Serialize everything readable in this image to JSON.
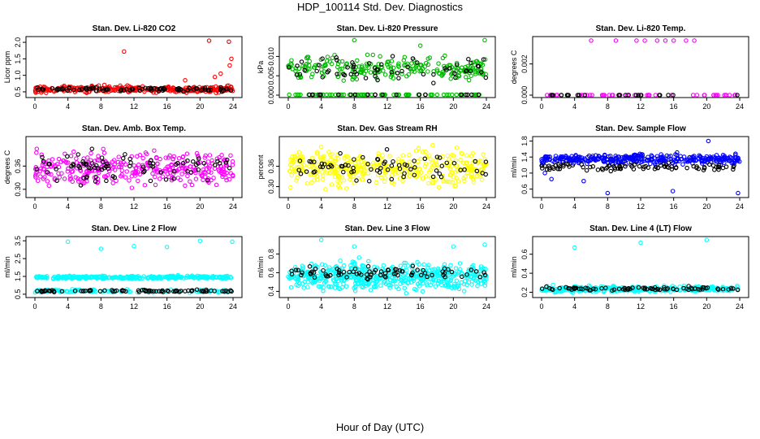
{
  "title": "HDP_100114  Std. Dev. Diagnostics",
  "xlabel": "Hour of Day (UTC)",
  "x_ticks": [
    "0",
    "4",
    "8",
    "12",
    "16",
    "20",
    "24"
  ],
  "chart_data": [
    {
      "type": "scatter",
      "title": "Stan. Dev. Li-820 CO2",
      "ylabel": "Licor ppm",
      "xlim": [
        0,
        24
      ],
      "ylim": [
        0.4,
        2.1
      ],
      "y_ticks": [
        "0.5",
        "1.0",
        "1.5",
        "2.0"
      ],
      "y_tick_values": [
        0.5,
        1.0,
        1.5,
        2.0
      ],
      "grid": false,
      "series": [
        {
          "color": "#ff0000",
          "base": 0.58,
          "spread": 0.1,
          "n": 300,
          "outliers": [
            [
              10.8,
              1.72
            ],
            [
              21.1,
              2.05
            ],
            [
              23.5,
              2.02
            ],
            [
              23.8,
              1.5
            ],
            [
              23.6,
              1.3
            ],
            [
              22.5,
              1.05
            ],
            [
              21.8,
              0.95
            ],
            [
              18.2,
              0.85
            ]
          ]
        },
        {
          "color": "#000000",
          "base": 0.58,
          "spread": 0.06,
          "n": 90,
          "outliers": []
        }
      ]
    },
    {
      "type": "scatter",
      "title": "Stan. Dev. Li-820 Pressure",
      "ylabel": "kPa",
      "xlim": [
        0,
        24
      ],
      "ylim": [
        0,
        0.0145
      ],
      "y_ticks": [
        "0.000",
        "0.005",
        "0.010"
      ],
      "y_tick_values": [
        0,
        0.005,
        0.01
      ],
      "grid": false,
      "series": [
        {
          "color": "#00bb00",
          "base": 0.0068,
          "spread": 0.003,
          "n": 240,
          "floor_n": 70,
          "outliers": [
            [
              8.0,
              0.0142
            ],
            [
              16.0,
              0.0128
            ],
            [
              23.8,
              0.0142
            ]
          ]
        },
        {
          "color": "#000000",
          "base": 0.0065,
          "spread": 0.003,
          "n": 60,
          "floor_n": 20,
          "outliers": []
        }
      ]
    },
    {
      "type": "scatter",
      "title": "Stan. Dev. Li-820 Temp.",
      "ylabel": "degrees C",
      "xlim": [
        0,
        24
      ],
      "ylim": [
        0,
        0.0036
      ],
      "y_ticks": [
        "0.000",
        "0.002"
      ],
      "y_tick_values": [
        0,
        0.002
      ],
      "grid": false,
      "series": [
        {
          "color": "#ff00ff",
          "base": 0.0,
          "spread": 0.0,
          "n": 48,
          "outliers": [
            [
              6.0,
              0.0035
            ],
            [
              9.0,
              0.0035
            ],
            [
              11.5,
              0.0035
            ],
            [
              12.5,
              0.0035
            ],
            [
              14.0,
              0.0035
            ],
            [
              15.0,
              0.0035
            ],
            [
              16.0,
              0.0035
            ],
            [
              17.5,
              0.0035
            ],
            [
              18.5,
              0.0035
            ]
          ]
        },
        {
          "color": "#000000",
          "base": 0.0,
          "spread": 0.0,
          "n": 24,
          "outliers": []
        }
      ]
    },
    {
      "type": "scatter",
      "title": "Stan. Dev. Amb. Box Temp.",
      "ylabel": "degrees C",
      "xlim": [
        0,
        24
      ],
      "ylim": [
        0.285,
        0.43
      ],
      "y_ticks": [
        "0.30",
        "0.36"
      ],
      "y_tick_values": [
        0.3,
        0.36
      ],
      "grid": false,
      "series": [
        {
          "color": "#ff00ff",
          "base": 0.355,
          "spread": 0.045,
          "n": 330,
          "outliers": []
        },
        {
          "color": "#000000",
          "base": 0.355,
          "spread": 0.035,
          "n": 80,
          "outliers": []
        }
      ]
    },
    {
      "type": "scatter",
      "title": "Stan. Dev. Gas Stream RH",
      "ylabel": "percent",
      "xlim": [
        0,
        24
      ],
      "ylim": [
        0.275,
        0.44
      ],
      "y_ticks": [
        "0.30",
        "0.36"
      ],
      "y_tick_values": [
        0.3,
        0.36
      ],
      "grid": false,
      "series": [
        {
          "color": "#ffff00",
          "base": 0.355,
          "spread": 0.05,
          "n": 380,
          "outliers": []
        },
        {
          "color": "#000000",
          "base": 0.355,
          "spread": 0.04,
          "n": 70,
          "outliers": []
        }
      ]
    },
    {
      "type": "scatter",
      "title": "Stan. Dev. Sample Flow",
      "ylabel": "ml/min",
      "xlim": [
        0,
        24
      ],
      "ylim": [
        0.45,
        1.85
      ],
      "y_ticks": [
        "0.6",
        "1.0",
        "1.4",
        "1.8"
      ],
      "y_tick_values": [
        0.6,
        1.0,
        1.4,
        1.8
      ],
      "grid": false,
      "series": [
        {
          "color": "#0000ff",
          "base": 1.35,
          "spread": 0.12,
          "n": 360,
          "outliers": [
            [
              0.4,
              1.0
            ],
            [
              1.2,
              0.85
            ],
            [
              8.0,
              0.5
            ],
            [
              15.9,
              0.55
            ],
            [
              20.2,
              1.8
            ],
            [
              23.8,
              0.5
            ],
            [
              5.1,
              0.8
            ]
          ]
        },
        {
          "color": "#000000",
          "base": 1.15,
          "spread": 0.08,
          "n": 90,
          "outliers": []
        }
      ]
    },
    {
      "type": "scatter",
      "title": "Stan. Dev. Line 2 Flow",
      "ylabel": "ml/min",
      "xlim": [
        0,
        24
      ],
      "ylim": [
        0.45,
        3.6
      ],
      "y_ticks": [
        "0.5",
        "1.5",
        "2.5",
        "3.5"
      ],
      "y_tick_values": [
        0.5,
        1.5,
        2.5,
        3.5
      ],
      "grid": false,
      "series": [
        {
          "color": "#00ffff",
          "base": 1.45,
          "spread": 0.08,
          "n": 320,
          "outliers": [
            [
              4.0,
              3.45
            ],
            [
              8.0,
              3.05
            ],
            [
              12.0,
              3.2
            ],
            [
              16.0,
              3.15
            ],
            [
              20.0,
              3.5
            ],
            [
              23.9,
              3.45
            ]
          ]
        },
        {
          "color": "#00ffff",
          "base": 0.68,
          "spread": 0.08,
          "n": 120,
          "outliers": []
        },
        {
          "color": "#000000",
          "base": 0.68,
          "spread": 0.06,
          "n": 80,
          "outliers": []
        }
      ]
    },
    {
      "type": "scatter",
      "title": "Stan. Dev. Line 3 Flow",
      "ylabel": "ml/min",
      "xlim": [
        0,
        24
      ],
      "ylim": [
        0.36,
        0.96
      ],
      "y_ticks": [
        "0.4",
        "0.6",
        "0.8"
      ],
      "y_tick_values": [
        0.4,
        0.6,
        0.8
      ],
      "grid": false,
      "series": [
        {
          "color": "#00ffff",
          "base": 0.56,
          "spread": 0.14,
          "n": 520,
          "outliers": [
            [
              4.0,
              0.95
            ],
            [
              8.0,
              0.88
            ],
            [
              20.0,
              0.88
            ],
            [
              23.8,
              0.9
            ]
          ]
        },
        {
          "color": "#000000",
          "base": 0.6,
          "spread": 0.07,
          "n": 80,
          "outliers": []
        }
      ]
    },
    {
      "type": "scatter",
      "title": "Stan. Dev. Line 4 (LT) Flow",
      "ylabel": "ml/min",
      "xlim": [
        0,
        24
      ],
      "ylim": [
        0.17,
        0.76
      ],
      "y_ticks": [
        "0.2",
        "0.4",
        "0.6"
      ],
      "y_tick_values": [
        0.2,
        0.4,
        0.6
      ],
      "grid": false,
      "series": [
        {
          "color": "#00ffff",
          "base": 0.235,
          "spread": 0.03,
          "n": 330,
          "outliers": [
            [
              4.0,
              0.67
            ],
            [
              12.0,
              0.72
            ],
            [
              20.0,
              0.75
            ]
          ]
        },
        {
          "color": "#000000",
          "base": 0.235,
          "spread": 0.02,
          "n": 80,
          "outliers": []
        }
      ]
    }
  ]
}
